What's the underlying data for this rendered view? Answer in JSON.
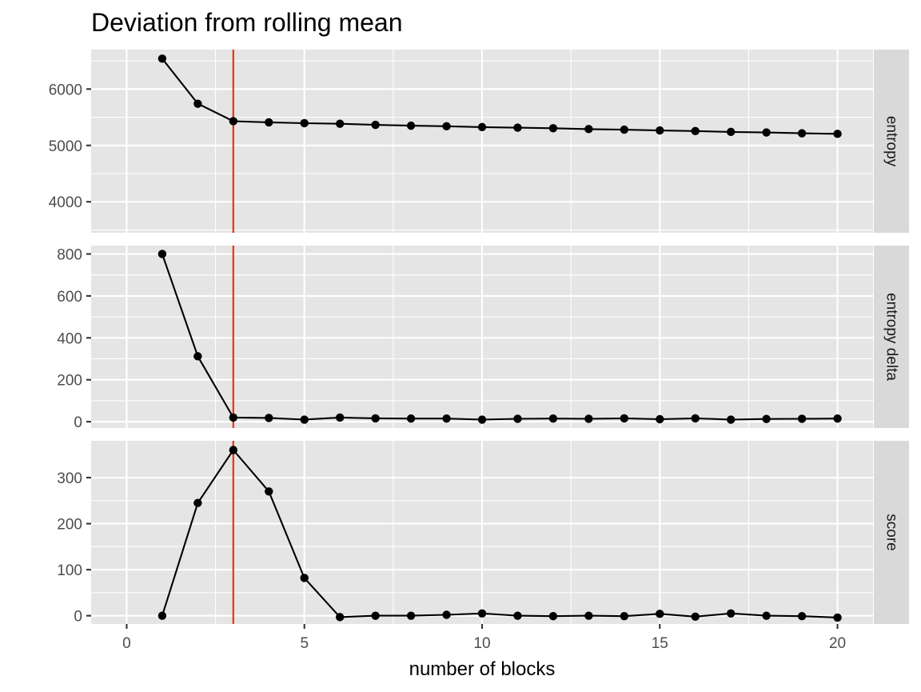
{
  "chart_data": {
    "type": "line",
    "title": "Deviation from rolling mean",
    "xlabel": "number of blocks",
    "xlim": [
      -1,
      21
    ],
    "x_breaks": [
      0,
      5,
      10,
      15,
      20
    ],
    "x_tick_labels": [
      "0",
      "5",
      "10",
      "15",
      "20"
    ],
    "vline_x": 3,
    "vline_color": "#e8391a",
    "x": [
      1,
      2,
      3,
      4,
      5,
      6,
      7,
      8,
      9,
      10,
      11,
      12,
      13,
      14,
      15,
      16,
      17,
      18,
      19,
      20
    ],
    "panels": [
      {
        "strip": "entropy",
        "ylim": [
          3450,
          6700
        ],
        "y_breaks": [
          4000,
          5000,
          6000
        ],
        "y_minor": [
          3500,
          4500,
          5500,
          6500
        ],
        "y_tick_labels": [
          "4000",
          "5000",
          "6000"
        ],
        "values": [
          6540,
          5740,
          5430,
          5410,
          5395,
          5385,
          5365,
          5350,
          5340,
          5325,
          5315,
          5305,
          5290,
          5280,
          5265,
          5255,
          5240,
          5230,
          5215,
          5205
        ]
      },
      {
        "strip": "entropy delta",
        "ylim": [
          -30,
          840
        ],
        "y_breaks": [
          0,
          200,
          400,
          600,
          800
        ],
        "y_minor": [
          100,
          300,
          500,
          700
        ],
        "y_tick_labels": [
          "0",
          "200",
          "400",
          "600",
          "800"
        ],
        "values": [
          800,
          312,
          20,
          18,
          10,
          20,
          16,
          15,
          15,
          10,
          14,
          15,
          14,
          16,
          12,
          16,
          10,
          13,
          14,
          15
        ]
      },
      {
        "strip": "score",
        "ylim": [
          -18,
          380
        ],
        "y_breaks": [
          0,
          100,
          200,
          300
        ],
        "y_minor": [
          50,
          150,
          250
        ],
        "y_tick_labels": [
          "0",
          "100",
          "200",
          "300"
        ],
        "values": [
          0,
          245,
          360,
          270,
          82,
          -3,
          0,
          0,
          2,
          5,
          0,
          -1,
          0,
          -1,
          4,
          -2,
          5,
          0,
          -1,
          -4
        ]
      }
    ]
  }
}
